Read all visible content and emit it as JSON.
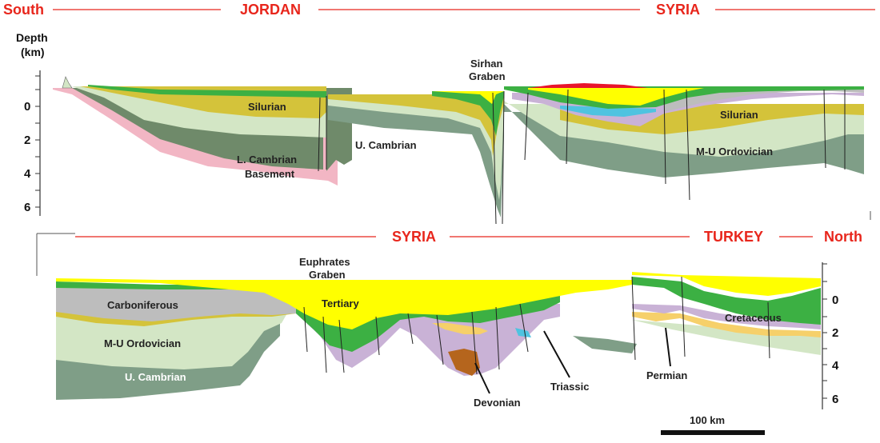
{
  "top_section": {
    "left_end": "South",
    "country_left": "JORDAN",
    "country_right": "SYRIA",
    "axis_title_1": "Depth",
    "axis_title_2": "(km)",
    "ticks": [
      "0",
      "2",
      "4",
      "6"
    ],
    "labels": {
      "silurian_left": "Silurian",
      "l_cambrian": "L. Cambrian",
      "basement": "Basement",
      "u_cambrian": "U. Cambrian",
      "sirhan_1": "Sirhan",
      "sirhan_2": "Graben",
      "silurian_right": "Silurian",
      "mu_ordovician": "M-U Ordovician"
    }
  },
  "bottom_section": {
    "country_left": "SYRIA",
    "country_right": "TURKEY",
    "right_end": "North",
    "ticks": [
      "0",
      "2",
      "4",
      "6"
    ],
    "labels": {
      "euphrates_1": "Euphrates",
      "euphrates_2": "Graben",
      "carboniferous": "Carboniferous",
      "tertiary": "Tertiary",
      "mu_ordovician": "M-U Ordovician",
      "u_cambrian": "U. Cambrian",
      "cretaceous": "Cretaceous",
      "devonian": "Devonian",
      "triassic": "Triassic",
      "permian": "Permian"
    },
    "scale_bar": "100 km"
  },
  "colors": {
    "region_text": "#e8261c",
    "tertiary": "#ffff00",
    "cretaceous": "#3cb043",
    "silurian": "#d4c33a",
    "ordovician": "#d3e6c5",
    "u_cambrian": "#7f9e87",
    "l_cambrian": "#6f8a6a",
    "basement": "#f2b6c4",
    "carboniferous": "#bdbdbd",
    "triassic": "#c9b2d6",
    "devonian": "#b5651d",
    "permian": "#f6d06a",
    "jurassic": "#4fc3e0",
    "volcanic": "#e8152b"
  }
}
